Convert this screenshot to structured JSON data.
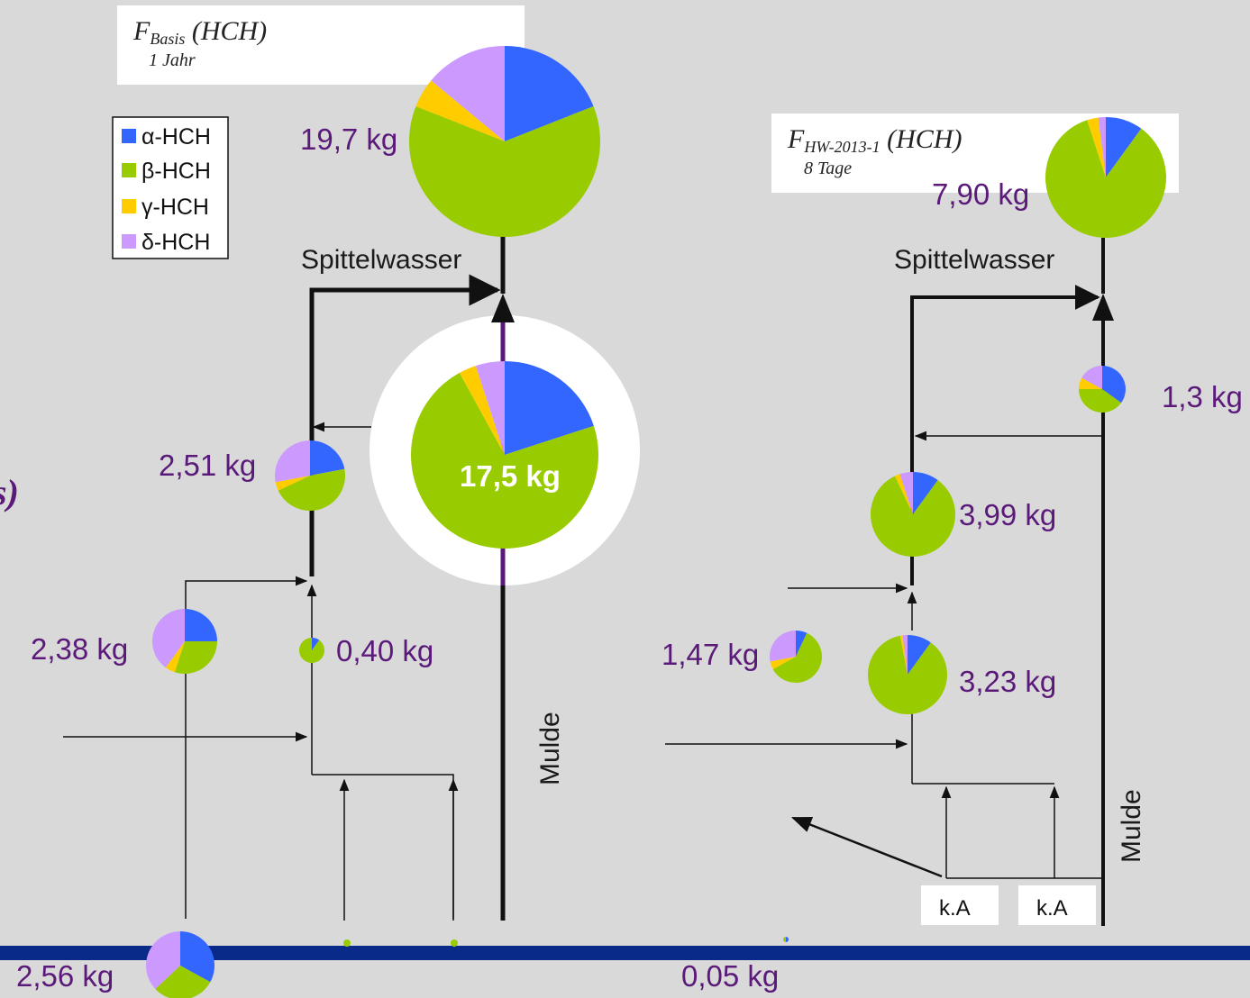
{
  "colors": {
    "alpha": "#3366ff",
    "beta": "#99cc00",
    "gamma": "#ffcc00",
    "delta": "#cc99ff",
    "river_bottom": "#0a2a8a",
    "mulde_purple": "#5b1a7a",
    "label_purple": "#5b1a7a"
  },
  "legend": {
    "items": [
      {
        "key": "alpha",
        "label": "α-HCH"
      },
      {
        "key": "beta",
        "label": "β-HCH"
      },
      {
        "key": "gamma",
        "label": "γ-HCH"
      },
      {
        "key": "delta",
        "label": "δ-HCH"
      }
    ]
  },
  "left_panel": {
    "title_main": "F",
    "title_sub": "Basis",
    "title_rest": " (HCH)",
    "period": "1 Jahr",
    "stream_label": "Spittelwasser",
    "river_label": "Mulde",
    "edge_glyph": "s)"
  },
  "right_panel": {
    "title_main": "F",
    "title_sub": "HW-2013-1",
    "title_rest": " (HCH)",
    "period": "8 Tage",
    "stream_label": "Spittelwasser",
    "river_label": "Mulde",
    "ka_labels": [
      "k.A",
      "k.A"
    ]
  },
  "pies": [
    {
      "id": "left-outlet",
      "label": "19,7 kg",
      "fractions": [
        0.19,
        0.62,
        0.05,
        0.14
      ]
    },
    {
      "id": "left-mulde",
      "label": "17,5 kg",
      "fractions": [
        0.2,
        0.72,
        0.03,
        0.05
      ]
    },
    {
      "id": "left-upper",
      "label": "2,51 kg",
      "fractions": [
        0.22,
        0.46,
        0.04,
        0.28
      ]
    },
    {
      "id": "left-mid",
      "label": "2,38 kg",
      "fractions": [
        0.25,
        0.3,
        0.05,
        0.4
      ]
    },
    {
      "id": "left-small",
      "label": "0,40 kg",
      "fractions": [
        0.1,
        0.9,
        0.0,
        0.0
      ]
    },
    {
      "id": "bottom-left",
      "label": "2,56 kg",
      "fractions": [
        0.33,
        0.3,
        0.0,
        0.37
      ]
    },
    {
      "id": "bottom-right",
      "label": "0,05 kg",
      "fractions": [
        0.5,
        0.5,
        0.0,
        0.0
      ]
    },
    {
      "id": "right-outlet",
      "label": "7,90 kg",
      "fractions": [
        0.1,
        0.85,
        0.03,
        0.02
      ]
    },
    {
      "id": "right-mulde",
      "label": "1,3 kg",
      "fractions": [
        0.35,
        0.4,
        0.08,
        0.17
      ]
    },
    {
      "id": "right-upper",
      "label": "3,99 kg",
      "fractions": [
        0.1,
        0.83,
        0.02,
        0.05
      ]
    },
    {
      "id": "right-lower",
      "label": "3,23 kg",
      "fractions": [
        0.1,
        0.87,
        0.01,
        0.02
      ]
    },
    {
      "id": "right-side",
      "label": "1,47 kg",
      "fractions": [
        0.07,
        0.6,
        0.05,
        0.28
      ]
    }
  ]
}
